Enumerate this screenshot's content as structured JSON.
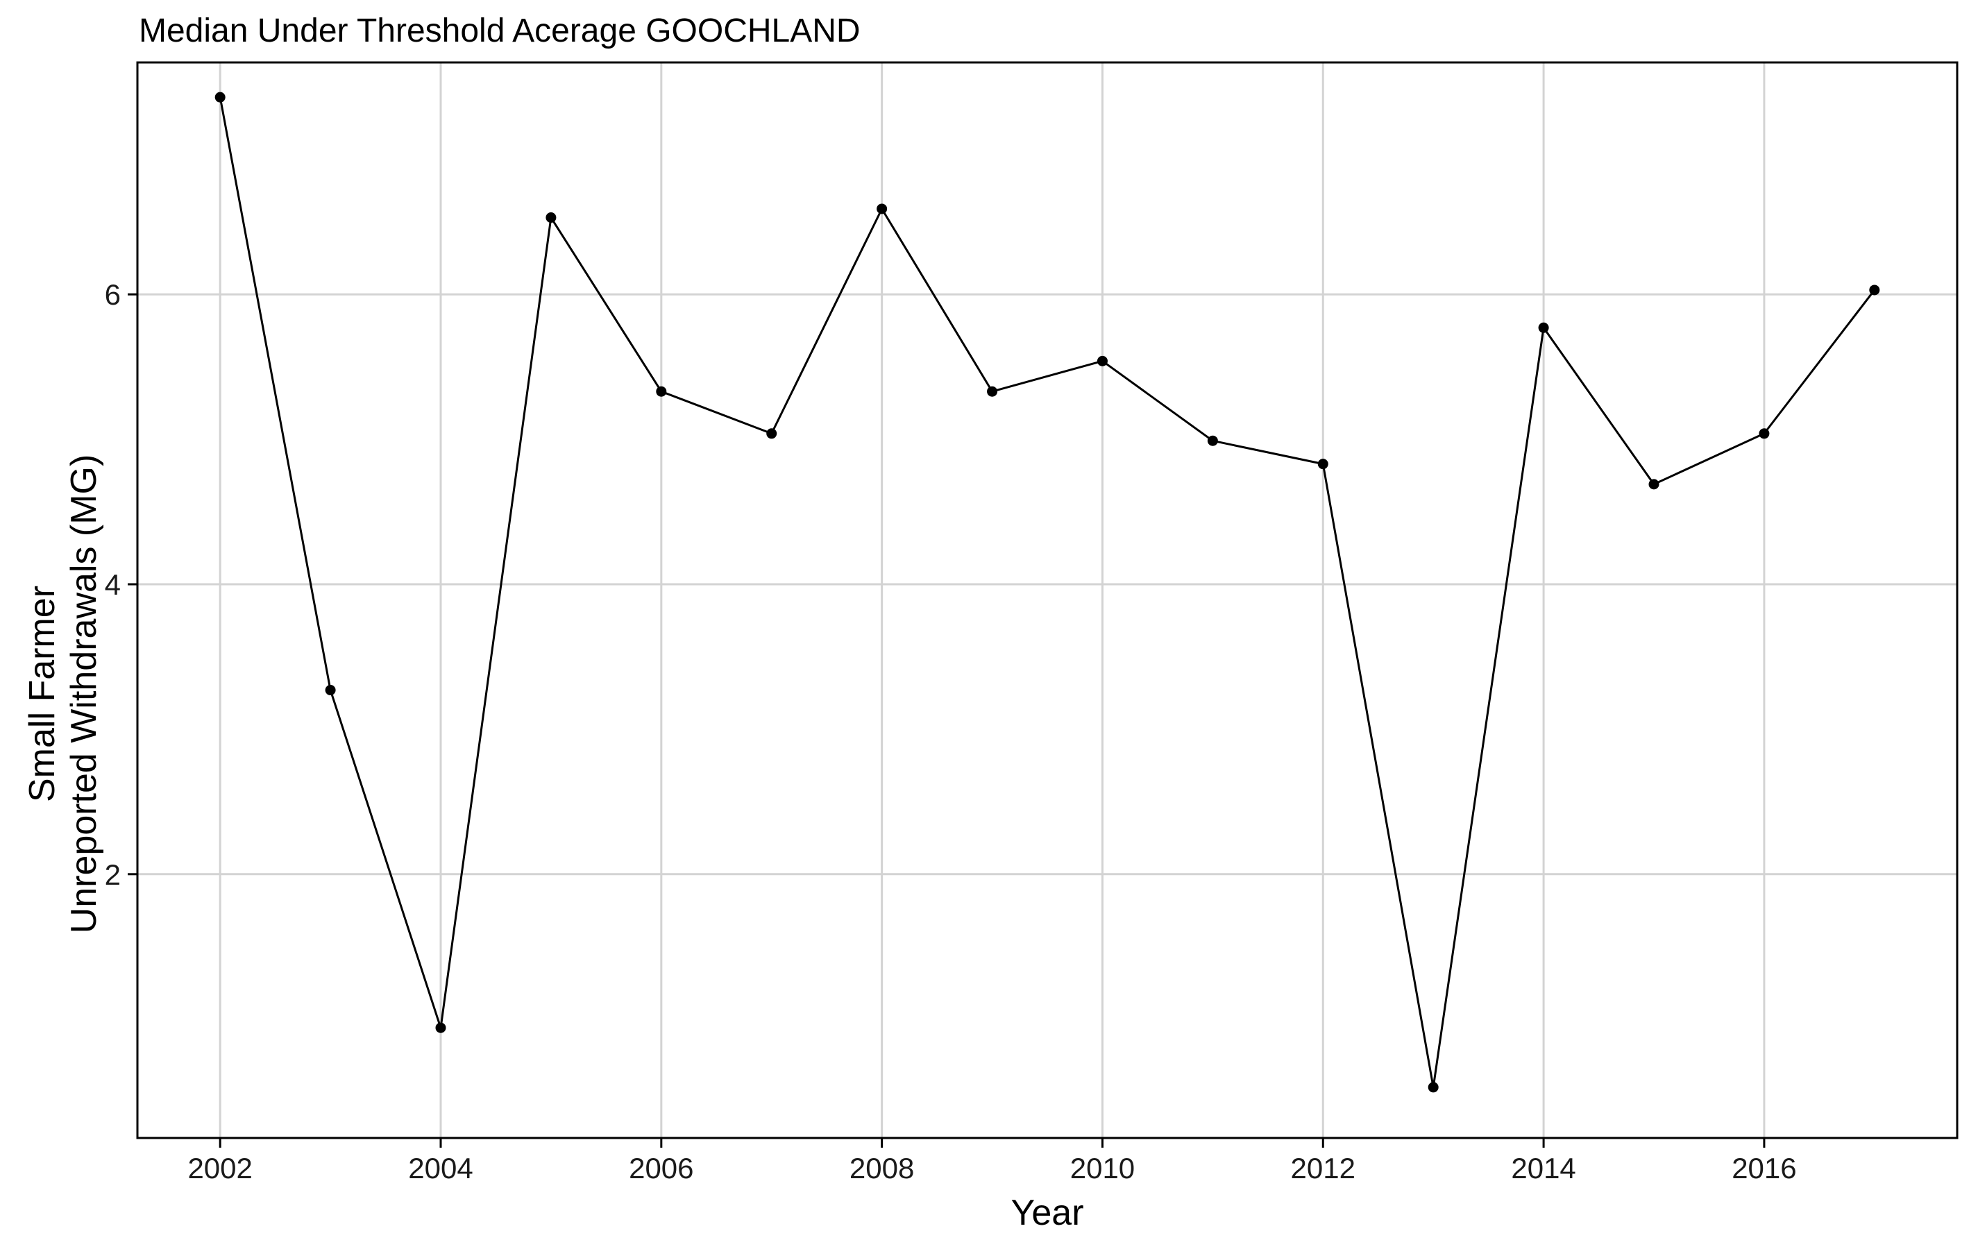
{
  "chart_data": {
    "type": "line",
    "title": "Median Under Threshold Acerage GOOCHLAND",
    "xlabel": "Year",
    "ylabel_lines": [
      "Small Farmer",
      "Unreported Withdrawals (MG)"
    ],
    "x": [
      2002,
      2003,
      2004,
      2005,
      2006,
      2007,
      2008,
      2009,
      2010,
      2011,
      2012,
      2013,
      2014,
      2015,
      2016,
      2017
    ],
    "series": [
      {
        "values": [
          7.36,
          3.27,
          0.94,
          6.53,
          5.33,
          5.04,
          6.59,
          5.33,
          5.54,
          4.99,
          4.83,
          0.53,
          5.77,
          4.69,
          5.04,
          6.03
        ]
      }
    ],
    "xlim": [
      2001.25,
      2017.75
    ],
    "ylim": [
      0.18,
      7.6
    ],
    "xticks": [
      2002,
      2004,
      2006,
      2008,
      2010,
      2012,
      2014,
      2016
    ],
    "yticks": [
      2,
      4,
      6
    ],
    "grid": true,
    "colors": {
      "line": "#000000",
      "points": "#000000",
      "grid": "#d3d3d3",
      "panel_border": "#000000",
      "background": "#ffffff"
    }
  }
}
